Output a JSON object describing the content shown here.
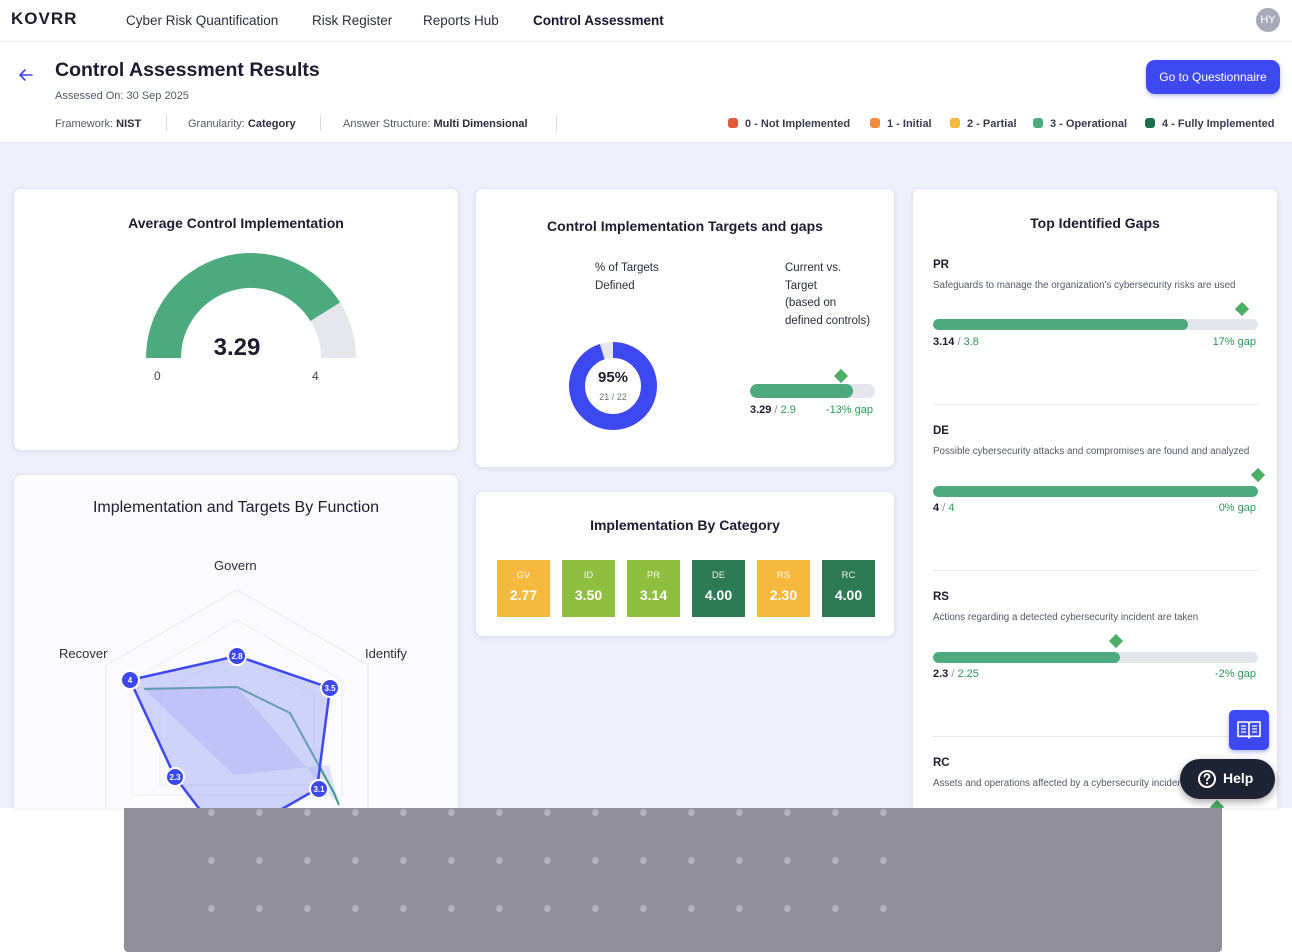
{
  "nav": {
    "logo": "KOVRR",
    "items": [
      {
        "label": "Cyber Risk Quantification"
      },
      {
        "label": "Risk Register"
      },
      {
        "label": "Reports Hub"
      },
      {
        "label": "Control Assessment"
      }
    ],
    "avatar": "HY"
  },
  "header": {
    "title": "Control Assessment Results",
    "assessed_on": "Assessed On: 30 Sep 2025",
    "framework_label": "Framework:",
    "framework_value": "NIST",
    "granularity_label": "Granularity:",
    "granularity_value": "Category",
    "answer_label": "Answer Structure:",
    "answer_value": "Multi Dimensional",
    "cta_label": "Go to Questionnaire",
    "legend": [
      {
        "label": "0 - Not Implemented",
        "color": "#e25a38"
      },
      {
        "label": "1 - Initial",
        "color": "#f08c3a"
      },
      {
        "label": "2 - Partial",
        "color": "#f5b93e"
      },
      {
        "label": "3 - Operational",
        "color": "#4daa7f"
      },
      {
        "label": "4 - Fully Implemented",
        "color": "#1f6e4e"
      }
    ]
  },
  "avg_card": {
    "title": "Average Control Implementation",
    "value": "3.29",
    "value_num": 3.29,
    "min_label": "0",
    "max_label": "4",
    "max_num": 4
  },
  "targets_card": {
    "title": "Control Implementation Targets and gaps",
    "pct_label_1": "% of Targets",
    "pct_label_2": "Defined",
    "pct_value": "95%",
    "pct_fraction": 0.95,
    "pct_count": "21 / 22",
    "cvt_lines": [
      "Current vs.",
      "Target",
      "(based on",
      "defined controls)"
    ],
    "current": "3.29",
    "target": "2.9",
    "current_frac": 0.8225,
    "target_frac": 0.725,
    "gap": "-13% gap"
  },
  "radar_card": {
    "title": "Implementation and Targets By Function",
    "labels": {
      "govern": "Govern",
      "identify": "Identify",
      "recover": "Recover"
    },
    "points": {
      "govern": "2.8",
      "identify": "3.5",
      "protect": "3.1",
      "recover": "4",
      "respond": "2.3"
    }
  },
  "category_card": {
    "title": "Implementation By Category",
    "items": [
      {
        "code": "GV",
        "value": "2.77",
        "color": "#f5b93e"
      },
      {
        "code": "ID",
        "value": "3.50",
        "color": "#8fbf3f"
      },
      {
        "code": "PR",
        "value": "3.14",
        "color": "#8fbf3f"
      },
      {
        "code": "DE",
        "value": "4.00",
        "color": "#2e7a54"
      },
      {
        "code": "RS",
        "value": "2.30",
        "color": "#f5b93e"
      },
      {
        "code": "RC",
        "value": "4.00",
        "color": "#2e7a54"
      }
    ]
  },
  "gaps_card": {
    "title": "Top Identified Gaps",
    "items": [
      {
        "code": "PR",
        "desc": "Safeguards to manage the organization's cybersecurity risks are used",
        "current": "3.14",
        "target": "3.8",
        "gap": "17% gap",
        "current_frac": 0.785,
        "target_frac": 0.95
      },
      {
        "code": "DE",
        "desc": "Possible cybersecurity attacks and compromises are found and analyzed",
        "current": "4",
        "target": "4",
        "gap": "0% gap",
        "current_frac": 1.0,
        "target_frac": 1.0
      },
      {
        "code": "RS",
        "desc": "Actions regarding a detected cybersecurity incident are taken",
        "current": "2.3",
        "target": "2.25",
        "gap": "-2% gap",
        "current_frac": 0.575,
        "target_frac": 0.5625
      },
      {
        "code": "RC",
        "desc": "Assets and operations affected by a cybersecurity incident"
      }
    ]
  },
  "help": {
    "label": "Help"
  }
}
